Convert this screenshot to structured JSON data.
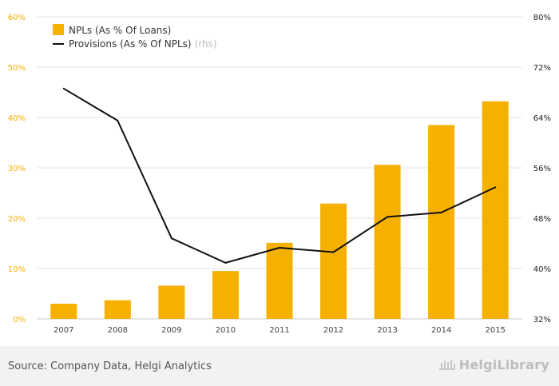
{
  "chart_data": {
    "type": "bar+line",
    "categories": [
      "2007",
      "2008",
      "2009",
      "2010",
      "2011",
      "2012",
      "2013",
      "2014",
      "2015"
    ],
    "series": [
      {
        "name": "NPLs (As % Of Loans)",
        "kind": "bar",
        "axis": "left",
        "color": "#f5b000",
        "values": [
          3.0,
          3.7,
          6.6,
          9.5,
          15.1,
          22.9,
          30.6,
          38.5,
          43.2
        ]
      },
      {
        "name": "Provisions (As % Of NPLs)",
        "kind": "line",
        "axis": "right",
        "color": "#111111",
        "values": [
          68.6,
          63.5,
          44.8,
          40.9,
          43.3,
          42.6,
          48.2,
          48.9,
          52.9
        ]
      }
    ],
    "legend": {
      "placement": "top-left",
      "rhs_note": "(rhs)"
    },
    "y_left": {
      "min": 0,
      "max": 60,
      "ticks": [
        "0%",
        "10%",
        "20%",
        "30%",
        "40%",
        "50%",
        "60%"
      ],
      "tick_values": [
        0,
        10,
        20,
        30,
        40,
        50,
        60
      ],
      "color": "#f5b000"
    },
    "y_right": {
      "min": 32,
      "max": 80,
      "ticks": [
        "32%",
        "40%",
        "48%",
        "56%",
        "64%",
        "72%",
        "80%"
      ],
      "tick_values": [
        32,
        40,
        48,
        56,
        64,
        72,
        80
      ],
      "color": "#222222"
    },
    "grid": true
  },
  "footer": {
    "source": "Source: Company Data, Helgi Analytics",
    "logo": "HelgiLibrary"
  }
}
